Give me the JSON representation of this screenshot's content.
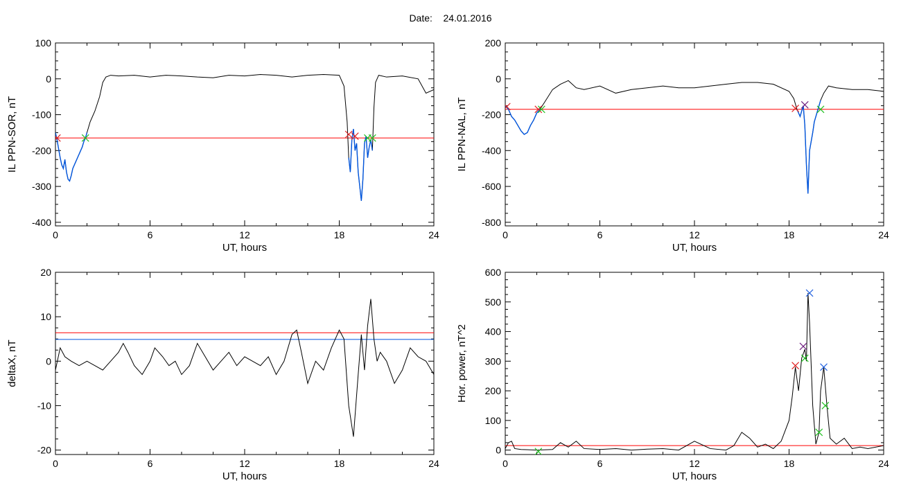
{
  "header": {
    "date_label": "Date:",
    "date_value": "24.01.2016"
  },
  "colors": {
    "trace": "#000000",
    "threshold": "#ff0000",
    "highlight": "#0055dd",
    "marker_red": "#e02020",
    "marker_green": "#20c020",
    "marker_purple": "#702080",
    "marker_blue": "#2060e0"
  },
  "chart_data": [
    {
      "id": "sor",
      "type": "line",
      "ylabel": "IL PPN-SOR, nT",
      "xlabel": "UT, hours",
      "xlim": [
        0,
        24
      ],
      "ylim": [
        -410,
        100
      ],
      "xticks": [
        0,
        6,
        12,
        18,
        24
      ],
      "xtick_labels": [
        "0",
        "6",
        "12",
        "18",
        "24"
      ],
      "yticks": [
        -400,
        -300,
        -200,
        -100,
        0,
        100
      ],
      "ytick_labels": [
        "-400",
        "-300",
        "-200",
        "-100",
        "0",
        "100"
      ],
      "threshold": -165,
      "series": [
        {
          "x": [
            0,
            0.1,
            0.2,
            0.3,
            0.4,
            0.5,
            0.6,
            0.7,
            0.8,
            0.9,
            1.0,
            1.1,
            1.2,
            1.3,
            1.4,
            1.5,
            1.6,
            1.7,
            1.8,
            1.9,
            2.0,
            2.2,
            2.5,
            2.8,
            3.0,
            3.2,
            3.5,
            4,
            5,
            6,
            7,
            8,
            9,
            10,
            11,
            12,
            13,
            14,
            15,
            16,
            17,
            18,
            18.3,
            18.5,
            18.6,
            18.7,
            18.8,
            18.9,
            19.0,
            19.1,
            19.2,
            19.3,
            19.4,
            19.5,
            19.6,
            19.7,
            19.8,
            19.9,
            20.0,
            20.1,
            20.2,
            20.3,
            20.5,
            21,
            22,
            23,
            23.5,
            24
          ],
          "y": [
            -150,
            -170,
            -195,
            -220,
            -240,
            -250,
            -225,
            -260,
            -280,
            -285,
            -270,
            -250,
            -240,
            -230,
            -220,
            -210,
            -200,
            -190,
            -175,
            -165,
            -150,
            -120,
            -90,
            -50,
            -10,
            5,
            10,
            8,
            10,
            5,
            10,
            8,
            5,
            3,
            10,
            8,
            12,
            10,
            5,
            10,
            12,
            10,
            -20,
            -120,
            -220,
            -260,
            -170,
            -140,
            -200,
            -180,
            -260,
            -300,
            -340,
            -280,
            -180,
            -160,
            -220,
            -190,
            -170,
            -200,
            -80,
            -10,
            10,
            5,
            8,
            0,
            -40,
            -30
          ],
          "highlight_range": [
            0,
            2.0
          ],
          "highlight_range2": [
            18.6,
            20.1
          ]
        }
      ],
      "markers": [
        {
          "x": 0.1,
          "y": -165,
          "color": "marker_red"
        },
        {
          "x": 1.9,
          "y": -165,
          "color": "marker_green"
        },
        {
          "x": 18.6,
          "y": -155,
          "color": "marker_red"
        },
        {
          "x": 19.0,
          "y": -160,
          "color": "marker_red"
        },
        {
          "x": 19.8,
          "y": -165,
          "color": "marker_green"
        },
        {
          "x": 20.1,
          "y": -165,
          "color": "marker_green"
        }
      ]
    },
    {
      "id": "nal",
      "type": "line",
      "ylabel": "IL PPN-NAL, nT",
      "xlabel": "UT, hours",
      "xlim": [
        0,
        24
      ],
      "ylim": [
        -820,
        200
      ],
      "xticks": [
        0,
        6,
        12,
        18,
        24
      ],
      "xtick_labels": [
        "0",
        "6",
        "12",
        "18",
        "24"
      ],
      "yticks": [
        -800,
        -600,
        -400,
        -200,
        0,
        200
      ],
      "ytick_labels": [
        "-800",
        "-600",
        "-400",
        "-200",
        "0",
        "200"
      ],
      "threshold": -170,
      "series": [
        {
          "x": [
            0,
            0.2,
            0.4,
            0.6,
            0.8,
            1.0,
            1.2,
            1.4,
            1.6,
            1.8,
            2.0,
            2.2,
            2.5,
            3.0,
            3.5,
            4.0,
            4.5,
            5,
            6,
            7,
            8,
            9,
            10,
            11,
            12,
            13,
            14,
            15,
            16,
            17,
            18,
            18.3,
            18.5,
            18.7,
            18.9,
            19.0,
            19.1,
            19.2,
            19.3,
            19.4,
            19.5,
            19.6,
            19.8,
            20.0,
            20.2,
            20.5,
            21,
            22,
            23,
            24
          ],
          "y": [
            -150,
            -170,
            -210,
            -230,
            -260,
            -290,
            -310,
            -300,
            -260,
            -230,
            -190,
            -170,
            -130,
            -60,
            -30,
            -10,
            -50,
            -60,
            -40,
            -80,
            -60,
            -50,
            -40,
            -50,
            -50,
            -40,
            -30,
            -20,
            -20,
            -30,
            -70,
            -110,
            -170,
            -210,
            -150,
            -260,
            -480,
            -640,
            -400,
            -350,
            -300,
            -240,
            -180,
            -120,
            -80,
            -40,
            -50,
            -60,
            -60,
            -70
          ],
          "highlight_range": [
            0,
            2.2
          ],
          "highlight_range2": [
            18.5,
            20.0
          ]
        }
      ],
      "markers": [
        {
          "x": 0.1,
          "y": -155,
          "color": "marker_red"
        },
        {
          "x": 2.1,
          "y": -170,
          "color": "marker_red"
        },
        {
          "x": 2.3,
          "y": -170,
          "color": "marker_green"
        },
        {
          "x": 18.4,
          "y": -165,
          "color": "marker_red"
        },
        {
          "x": 19.0,
          "y": -145,
          "color": "marker_purple"
        },
        {
          "x": 20.0,
          "y": -170,
          "color": "marker_green"
        }
      ]
    },
    {
      "id": "deltax",
      "type": "line",
      "ylabel": "deltaX, nT",
      "xlabel": "UT, hours",
      "xlim": [
        0,
        24
      ],
      "ylim": [
        -21,
        20
      ],
      "xticks": [
        0,
        6,
        12,
        18,
        24
      ],
      "xtick_labels": [
        "0",
        "6",
        "12",
        "18",
        "24"
      ],
      "yticks": [
        -20,
        -10,
        0,
        10,
        20
      ],
      "ytick_labels": [
        "-20",
        "-10",
        "0",
        "10",
        "20"
      ],
      "threshold": 6.4,
      "threshold2": 4.9,
      "series": [
        {
          "x": [
            0,
            0.3,
            0.6,
            1,
            1.5,
            2,
            2.5,
            3,
            3.5,
            4,
            4.3,
            4.6,
            5,
            5.5,
            6,
            6.3,
            6.8,
            7.2,
            7.6,
            8,
            8.5,
            9,
            9.5,
            10,
            10.5,
            11,
            11.5,
            12,
            12.5,
            13,
            13.5,
            14,
            14.5,
            15,
            15.3,
            15.6,
            16,
            16.5,
            17,
            17.5,
            18,
            18.3,
            18.6,
            18.9,
            19.2,
            19.4,
            19.6,
            19.8,
            20,
            20.2,
            20.4,
            20.6,
            21,
            21.5,
            22,
            22.5,
            23,
            23.5,
            24
          ],
          "y": [
            -2,
            3,
            1,
            0,
            -1,
            0,
            -1,
            -2,
            0,
            2,
            4,
            2,
            -1,
            -3,
            0,
            3,
            1,
            -1,
            0,
            -3,
            -1,
            4,
            1,
            -2,
            0,
            2,
            -1,
            1,
            0,
            -1,
            1,
            -3,
            0,
            6,
            7,
            2,
            -5,
            0,
            -2,
            3,
            7,
            5,
            -10,
            -17,
            -3,
            6,
            -2,
            8,
            14,
            5,
            0,
            2,
            0,
            -5,
            -2,
            3,
            1,
            0,
            -3
          ]
        }
      ],
      "markers": []
    },
    {
      "id": "power",
      "type": "line",
      "ylabel": "Hor. power, nT^2",
      "xlabel": "UT, hours",
      "xlim": [
        0,
        24
      ],
      "ylim": [
        -15,
        600
      ],
      "xticks": [
        0,
        6,
        12,
        18,
        24
      ],
      "xtick_labels": [
        "0",
        "6",
        "12",
        "18",
        "24"
      ],
      "yticks": [
        0,
        100,
        200,
        300,
        400,
        500,
        600
      ],
      "ytick_labels": [
        "0",
        "100",
        "200",
        "300",
        "400",
        "500",
        "600"
      ],
      "threshold": 15,
      "series": [
        {
          "x": [
            0,
            0.2,
            0.4,
            0.6,
            1,
            2,
            3,
            3.5,
            4,
            4.5,
            5,
            6,
            7,
            8,
            9,
            10,
            11,
            12,
            13,
            14,
            14.5,
            15,
            15.5,
            16,
            16.5,
            17,
            17.5,
            18,
            18.2,
            18.4,
            18.6,
            18.8,
            19.0,
            19.1,
            19.2,
            19.3,
            19.5,
            19.7,
            19.9,
            20.0,
            20.2,
            20.4,
            20.6,
            21,
            21.5,
            22,
            22.5,
            23,
            24
          ],
          "y": [
            5,
            25,
            30,
            5,
            2,
            0,
            2,
            25,
            10,
            30,
            5,
            2,
            5,
            0,
            3,
            5,
            0,
            30,
            5,
            0,
            15,
            60,
            40,
            10,
            20,
            5,
            30,
            100,
            180,
            280,
            200,
            310,
            340,
            300,
            530,
            430,
            150,
            20,
            60,
            200,
            280,
            150,
            40,
            20,
            40,
            5,
            10,
            5,
            15
          ]
        }
      ],
      "markers": [
        {
          "x": 18.4,
          "y": 285,
          "color": "marker_red"
        },
        {
          "x": 18.9,
          "y": 350,
          "color": "marker_purple"
        },
        {
          "x": 19.0,
          "y": 310,
          "color": "marker_green"
        },
        {
          "x": 19.3,
          "y": 530,
          "color": "marker_blue"
        },
        {
          "x": 19.9,
          "y": 60,
          "color": "marker_green"
        },
        {
          "x": 20.2,
          "y": 280,
          "color": "marker_blue"
        },
        {
          "x": 20.3,
          "y": 150,
          "color": "marker_green"
        },
        {
          "x": 2.1,
          "y": -5,
          "color": "marker_green"
        }
      ]
    }
  ]
}
